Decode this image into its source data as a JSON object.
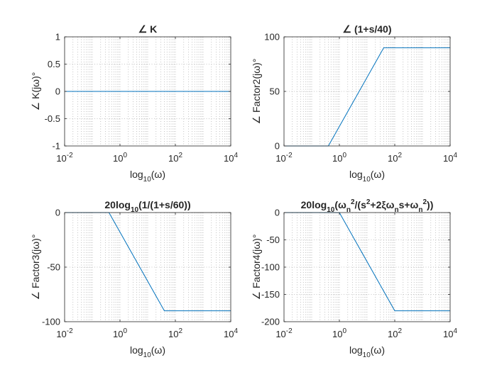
{
  "chart_data": [
    {
      "type": "line",
      "title": "∠ K",
      "xlabel": "log10(ω)",
      "ylabel": "∠ K(jω)°",
      "x_scale": "log",
      "xlim": [
        0.01,
        10000
      ],
      "ylim": [
        -1,
        1
      ],
      "grid": "on (minor x, dotted)",
      "x_ticks": [
        "10^-2",
        "10^0",
        "10^2",
        "10^4"
      ],
      "y_ticks": [
        "-1",
        "-0.5",
        "0",
        "0.5",
        "1"
      ],
      "series": [
        {
          "x": [
            0.01,
            10000
          ],
          "y": [
            0,
            0
          ]
        }
      ]
    },
    {
      "type": "line",
      "title": "∠ (1+s/40)",
      "xlabel": "log10(ω)",
      "ylabel": "∠ Factor2(jω)°",
      "x_scale": "log",
      "xlim": [
        0.01,
        10000
      ],
      "ylim": [
        0,
        100
      ],
      "grid": "on (minor x, dotted)",
      "x_ticks": [
        "10^-2",
        "10^0",
        "10^2",
        "10^4"
      ],
      "y_ticks": [
        "0",
        "50",
        "100"
      ],
      "series": [
        {
          "x": [
            0.01,
            0.4,
            40,
            10000
          ],
          "y": [
            0,
            0,
            90,
            90
          ]
        }
      ]
    },
    {
      "type": "line",
      "title": "20log10(1/(1+s/60))",
      "xlabel": "log10(ω)",
      "ylabel": "∠ Factor3(jω)°",
      "x_scale": "log",
      "xlim": [
        0.01,
        10000
      ],
      "ylim": [
        -100,
        0
      ],
      "grid": "on (minor x, dotted)",
      "x_ticks": [
        "10^-2",
        "10^0",
        "10^2",
        "10^4"
      ],
      "y_ticks": [
        "-100",
        "-50",
        "0"
      ],
      "series": [
        {
          "x": [
            0.01,
            0.4,
            40,
            10000
          ],
          "y": [
            0,
            0,
            -90,
            -90
          ]
        }
      ]
    },
    {
      "type": "line",
      "title": "20log10(ωn²/(s²+2ξωns+ωn²))",
      "xlabel": "log10(ω)",
      "ylabel": "∠ Factor4(jω)°",
      "x_scale": "log",
      "xlim": [
        0.01,
        10000
      ],
      "ylim": [
        -200,
        0
      ],
      "grid": "on (minor x, dotted)",
      "x_ticks": [
        "10^-2",
        "10^0",
        "10^2",
        "10^4"
      ],
      "y_ticks": [
        "-200",
        "-150",
        "-100",
        "-50",
        "0"
      ],
      "series": [
        {
          "x": [
            0.01,
            1,
            100,
            10000
          ],
          "y": [
            0,
            0,
            -180,
            -180
          ]
        }
      ]
    }
  ],
  "colors": {
    "line": "#0072BD",
    "axes": "#262626",
    "grid": "#b5b5b5"
  }
}
